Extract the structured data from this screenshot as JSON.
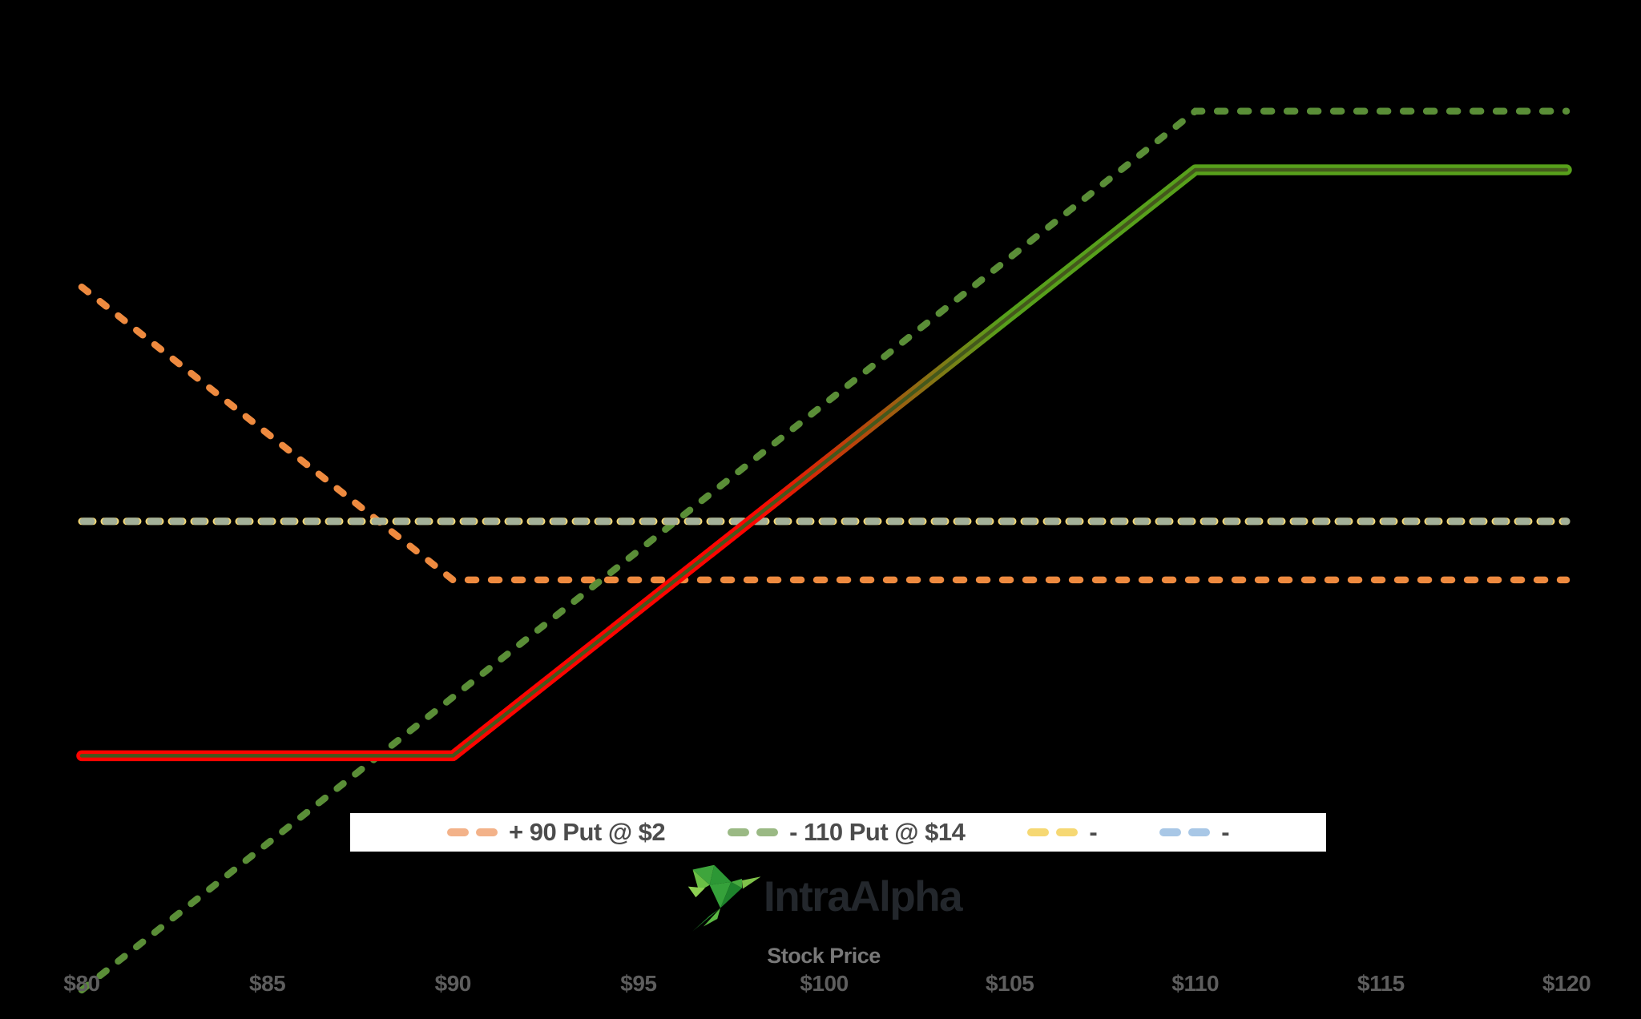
{
  "page": {
    "background": "#000000"
  },
  "chart_data": {
    "type": "line",
    "xlabel": "Stock Price",
    "x_ticks": [
      "$80",
      "$85",
      "$90",
      "$95",
      "$100",
      "$105",
      "$110",
      "$115",
      "$120"
    ],
    "x_tick_values": [
      80,
      85,
      90,
      95,
      100,
      105,
      110,
      115,
      120
    ],
    "x_range": [
      80,
      120
    ],
    "y_visible_range": [
      -17,
      16
    ],
    "grid": false,
    "legend_position": "bottom-center",
    "series": [
      {
        "name": "+ 90 Put @ $2",
        "style": "dashed",
        "color": "#ee8a3f",
        "points": [
          [
            80,
            8
          ],
          [
            90,
            -2
          ],
          [
            120,
            -2
          ]
        ]
      },
      {
        "name": "- 110 Put @ $14",
        "style": "dashed",
        "color": "#5a8e37",
        "points": [
          [
            80,
            -16
          ],
          [
            110,
            14
          ],
          [
            120,
            14
          ]
        ]
      },
      {
        "name": "-",
        "style": "dashed",
        "color": "#f6d873",
        "points": [
          [
            80,
            0
          ],
          [
            120,
            0
          ]
        ]
      },
      {
        "name": "-",
        "style": "dashed",
        "color": "#a8c7e6",
        "rendered_color": "#a3b099",
        "points": [
          [
            80,
            0
          ],
          [
            120,
            0
          ]
        ],
        "note": "overlaps the yellow zero line; on screen blends to sage with yellow tips"
      },
      {
        "name": "combined payoff (no legend entry)",
        "style": "solid-gradient",
        "color_negative": "#fe0400",
        "color_positive": "#57a01b",
        "core_color": "#44581c",
        "points": [
          [
            80,
            -8
          ],
          [
            90,
            -8
          ],
          [
            110,
            12
          ],
          [
            120,
            12
          ]
        ],
        "breakeven": 98
      }
    ]
  },
  "legend": {
    "background": "#ffffff",
    "text_color": "#4c4c4c",
    "items": [
      {
        "id": "long-put",
        "label": "+ 90 Put @ $2",
        "swatch_color": "#f3b289"
      },
      {
        "id": "short-put",
        "label": "- 110 Put @ $14",
        "swatch_color": "#9ab984"
      },
      {
        "id": "zero-yellow",
        "label": "-",
        "swatch_color": "#f6d873"
      },
      {
        "id": "zero-blue",
        "label": "-",
        "swatch_color": "#a8c7e6"
      }
    ]
  },
  "axis": {
    "tick_color": "#5e5e5e",
    "label_color": "#787878"
  },
  "branding": {
    "name": "IntraAlpha",
    "logo_icon": "hummingbird-logo",
    "text_color": "#23272c"
  }
}
